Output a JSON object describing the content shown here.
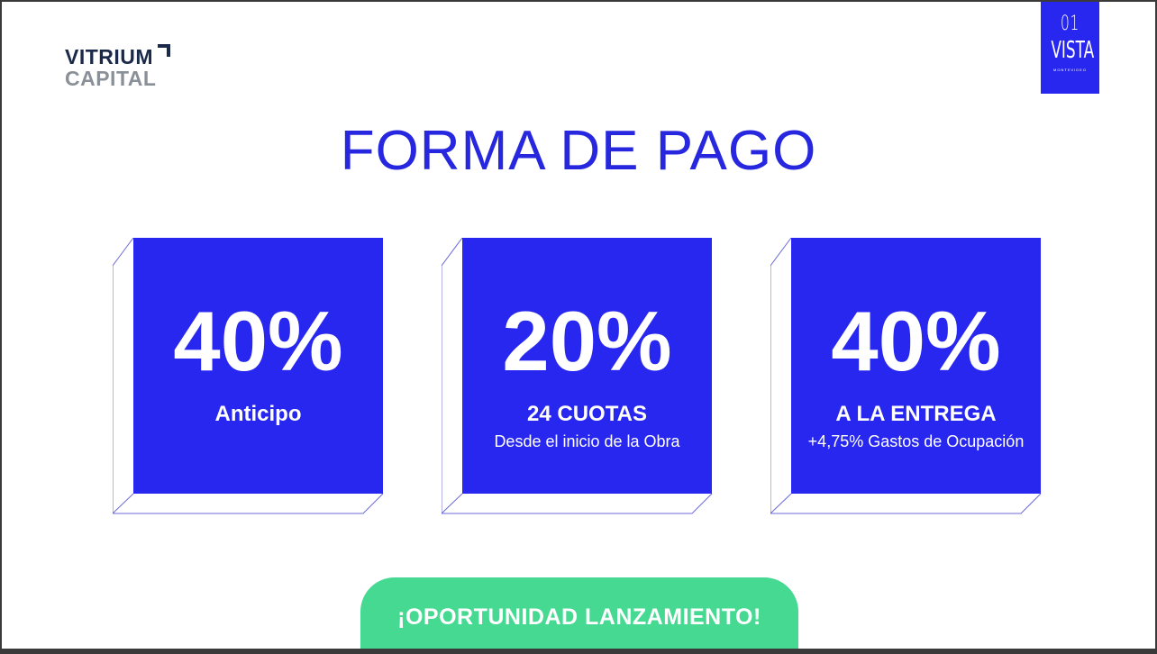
{
  "logos": {
    "vitrium": {
      "line1": "VITRIUM",
      "line2": "CAPITAL"
    },
    "vista": {
      "number": "01",
      "name": "VISTA",
      "city": "MONTEVIDEO"
    }
  },
  "title": "FORMA DE PAGO",
  "cards": [
    {
      "percent": "40%",
      "label": "Anticipo",
      "sub": ""
    },
    {
      "percent": "20%",
      "label": "24 CUOTAS",
      "sub": "Desde el inicio de la Obra"
    },
    {
      "percent": "40%",
      "label": "A LA ENTREGA",
      "sub": "+4,75% Gastos de Ocupación"
    }
  ],
  "cta": "¡OPORTUNIDAD LANZAMIENTO!",
  "colors": {
    "brand_blue": "#2727f0",
    "cta_green": "#45d991",
    "navy": "#1b2a4a"
  }
}
